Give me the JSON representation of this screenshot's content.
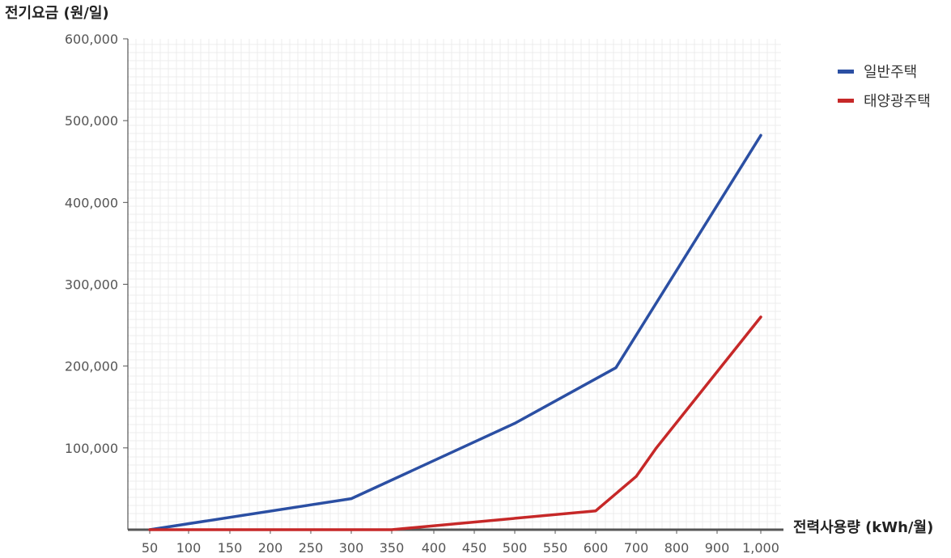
{
  "chart_data": {
    "type": "line",
    "ylabel": "전기요금 (원/일)",
    "xlabel": "전력사용량 (kWh/월)",
    "x_tick_labels": [
      "50",
      "100",
      "150",
      "200",
      "250",
      "300",
      "350",
      "400",
      "450",
      "500",
      "550",
      "600",
      "700",
      "800",
      "900",
      "1,000"
    ],
    "y_tick_labels": [
      "100,000",
      "200,000",
      "300,000",
      "400,000",
      "500,000",
      "600,000"
    ],
    "y_ticks": [
      100000,
      200000,
      300000,
      400000,
      500000,
      600000
    ],
    "ylim": [
      0,
      600000
    ],
    "grid": true,
    "legend_position": "top-right",
    "series": [
      {
        "name": "일반주택",
        "color": "#2b4fa3",
        "points": [
          [
            50,
            0
          ],
          [
            300,
            38000
          ],
          [
            500,
            130000
          ],
          [
            650,
            198000
          ],
          [
            1000,
            482000
          ]
        ]
      },
      {
        "name": "태양광주택",
        "color": "#c62828",
        "points": [
          [
            50,
            0
          ],
          [
            350,
            0
          ],
          [
            600,
            23000
          ],
          [
            700,
            65000
          ],
          [
            750,
            100000
          ],
          [
            1000,
            260000
          ]
        ]
      }
    ]
  }
}
